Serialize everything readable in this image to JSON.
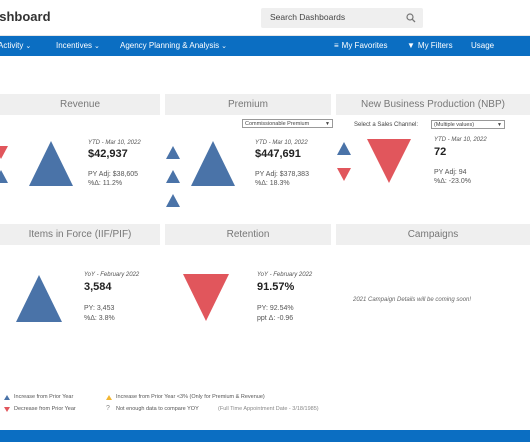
{
  "header": {
    "title": "ashboard",
    "search_placeholder": "Search Dashboards"
  },
  "nav": {
    "left": [
      "Activity",
      "Incentives",
      "Agency Planning & Analysis"
    ],
    "right": [
      "My Favorites",
      "My Filters",
      "Usage"
    ]
  },
  "panels": {
    "revenue": {
      "title": "Revenue",
      "ytd": "YTD - Mar 10, 2022",
      "value": "$42,937",
      "py": "PY Adj: $38,605",
      "pct": "%Δ: 11.2%"
    },
    "premium": {
      "title": "Premium",
      "dropdown": "Commissionable Premium",
      "ytd": "YTD - Mar 10, 2022",
      "value": "$447,691",
      "py": "PY Adj: $378,383",
      "pct": "%Δ: 18.3%"
    },
    "nbp": {
      "title": "New Business Production (NBP)",
      "channel_label": "Select a Sales Channel:",
      "dropdown": "(Multiple values)",
      "ytd": "YTD - Mar 10, 2022",
      "value": "72",
      "py": "PY Adj: 94",
      "pct": "%Δ: -23.0%"
    },
    "iif": {
      "title": "Items in Force (IIF/PIF)",
      "ytd": "YoY - February 2022",
      "value": "3,584",
      "py": "PY: 3,453",
      "pct": "%Δ: 3.8%"
    },
    "retention": {
      "title": "Retention",
      "ytd": "YoY - February 2022",
      "value": "91.57%",
      "py": "PY: 92.54%",
      "pct": "ppt Δ: -0.96"
    },
    "campaigns": {
      "title": "Campaigns",
      "message": "2021 Campaign Details will be coming soon!"
    }
  },
  "legend": {
    "increase": "Increase from Prior Year",
    "decrease": "Decrease from Prior Year",
    "increase_small": "Increase from Prior Year <3% (Only for Premium & Revenue)",
    "not_enough": "Not enough data to compare YOY",
    "appointment": "(Full Time Appointment Date - 3/18/1985)"
  },
  "colors": {
    "up": "#4a73a8",
    "down": "#e1565c",
    "warn": "#f2b632",
    "nav": "#0b6ec2"
  }
}
